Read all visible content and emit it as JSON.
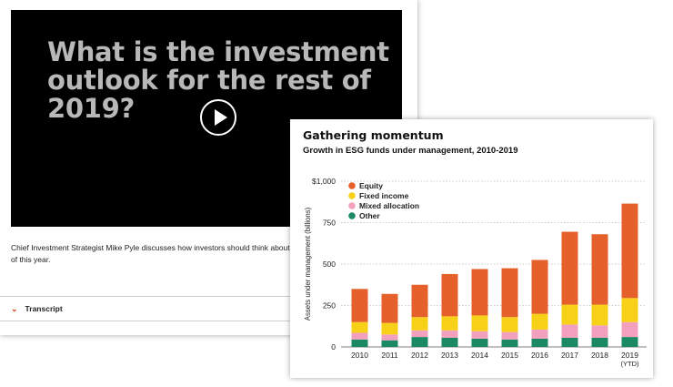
{
  "video": {
    "title": "What is the investment outlook for the rest of 2019?",
    "caption": "Chief Investment Strategist Mike Pyle discusses how investors should think about bu",
    "caption_line2": "of this year.",
    "transcript_label": "Transcript"
  },
  "chart_data": {
    "type": "bar",
    "stacked": true,
    "title": "Gathering momentum",
    "subtitle": "Growth in ESG funds under management, 2010-2019",
    "ylabel": "Assets under management (billions)",
    "ylim": [
      0,
      1000
    ],
    "yticks": [
      "$1,000",
      "750",
      "500",
      "250",
      "0"
    ],
    "categories": [
      "2010",
      "2011",
      "2012",
      "2013",
      "2014",
      "2015",
      "2016",
      "2017",
      "2018",
      "2019"
    ],
    "category_sub": [
      "",
      "",
      "",
      "",
      "",
      "",
      "",
      "",
      "",
      "(YTD)"
    ],
    "legend_position": "top-left",
    "series": [
      {
        "name": "Other",
        "color": "#1b8a64",
        "values": [
          45,
          40,
          60,
          55,
          50,
          45,
          50,
          55,
          55,
          60
        ]
      },
      {
        "name": "Mixed allocation",
        "color": "#f3a0bf",
        "values": [
          40,
          35,
          40,
          45,
          45,
          45,
          55,
          80,
          75,
          90
        ]
      },
      {
        "name": "Fixed income",
        "color": "#f7d117",
        "values": [
          65,
          70,
          80,
          85,
          95,
          90,
          95,
          120,
          125,
          145
        ]
      },
      {
        "name": "Equity",
        "color": "#e5602a",
        "values": [
          200,
          175,
          195,
          255,
          280,
          295,
          325,
          440,
          425,
          570
        ]
      }
    ]
  }
}
